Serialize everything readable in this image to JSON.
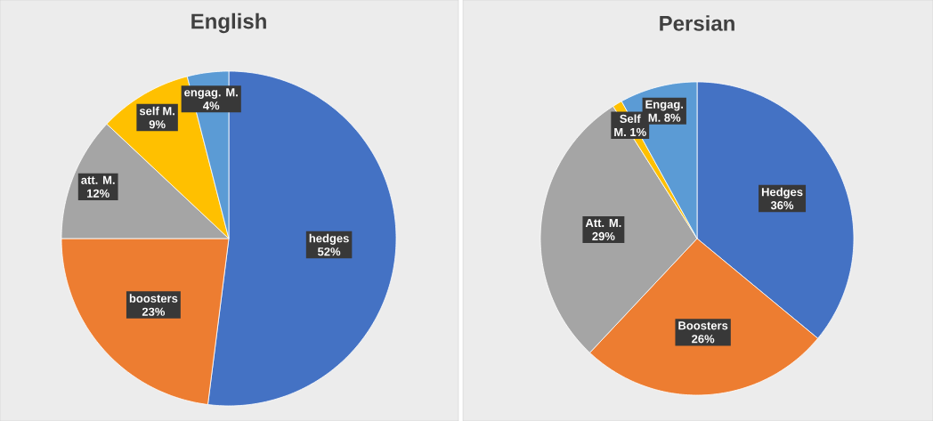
{
  "chart_data": [
    {
      "type": "pie",
      "title": "English",
      "categories": [
        "hedges",
        "boosters",
        "att. M.",
        "self M.",
        "engag. M."
      ],
      "values": [
        52,
        23,
        12,
        9,
        4
      ],
      "value_labels": [
        "52%",
        "23%",
        "12%",
        "9%",
        "4%"
      ],
      "colors": [
        "#4472c4",
        "#ed7d31",
        "#a5a5a5",
        "#ffc000",
        "#5b9bd5"
      ]
    },
    {
      "type": "pie",
      "title": "Persian",
      "categories": [
        "Hedges",
        "Boosters",
        "Att. M.",
        "Self",
        "Engag."
      ],
      "values": [
        36,
        26,
        29,
        1,
        8
      ],
      "value_labels": [
        "36%",
        "26%",
        "29%",
        "M. 1%",
        "M. 8%"
      ],
      "colors": [
        "#4472c4",
        "#ed7d31",
        "#a5a5a5",
        "#ffc000",
        "#5b9bd5"
      ]
    }
  ]
}
